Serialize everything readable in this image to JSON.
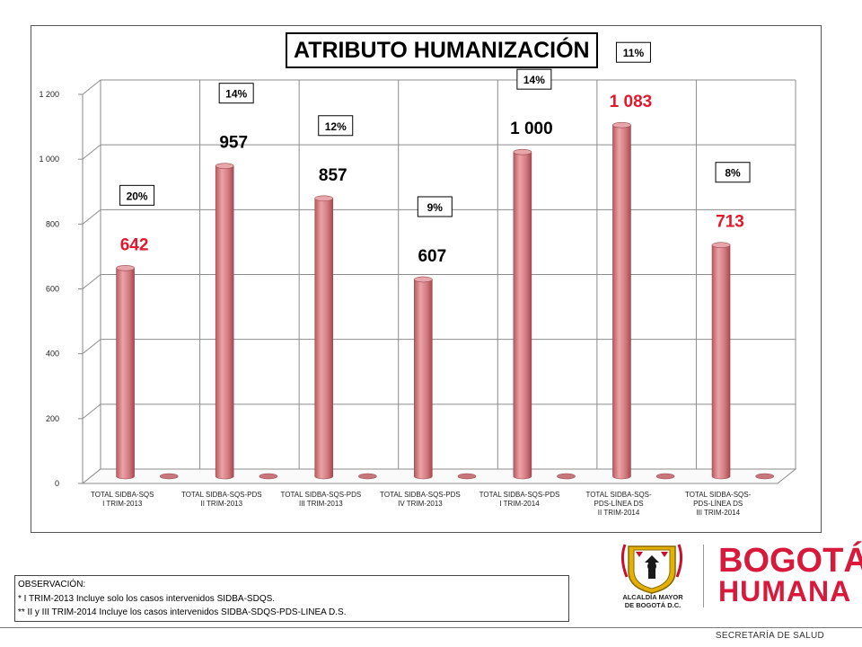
{
  "chart_data": {
    "type": "bar",
    "title": "ATRIBUTO HUMANIZACIÓN",
    "categories": [
      [
        "TOTAL SIDBA-SQS",
        "I TRIM-2013"
      ],
      [
        "TOTAL SIDBA-SQS-PDS",
        "II TRIM-2013"
      ],
      [
        "TOTAL SIDBA-SQS-PDS",
        "III TRIM-2013"
      ],
      [
        "TOTAL SIDBA-SQS-PDS",
        "IV TRIM-2013"
      ],
      [
        "TOTAL SIDBA-SQS-PDS",
        "I TRIM-2014"
      ],
      [
        "TOTAL SIDBA-SQS-",
        "PDS-LÍNEA DS",
        "II TRIM-2014"
      ],
      [
        "TOTAL SIDBA-SQS-",
        "PDS-LÍNEA DS",
        "III TRIM-2014"
      ]
    ],
    "values": [
      642,
      957,
      857,
      607,
      1000,
      1083,
      713
    ],
    "value_labels": [
      "642",
      "957",
      "857",
      "607",
      "1 000",
      "1 083",
      "713"
    ],
    "value_label_colors": [
      "#e3182d",
      "#000000",
      "#000000",
      "#000000",
      "#000000",
      "#e3182d",
      "#e3182d"
    ],
    "percent_labels": [
      "20%",
      "14%",
      "12%",
      "9%",
      "14%",
      "11%",
      "8%"
    ],
    "ylim": [
      0,
      1200
    ],
    "yticks": [
      0,
      200,
      400,
      600,
      800,
      1000,
      1200
    ],
    "ytick_labels": [
      "0",
      "200",
      "400",
      "600",
      "800",
      "1 000",
      "1 200"
    ],
    "grid": true,
    "bar_color": "#d9858a",
    "xlabel": "",
    "ylabel": ""
  },
  "observation": {
    "heading": "OBSERVACIÓN:",
    "line1": "* I TRIM-2013 Incluye solo los casos intervenidos SIDBA-SDQS.",
    "line2": "** II y III TRIM-2014 Incluye los casos intervenidos SIDBA-SDQS-PDS-LINEA D.S."
  },
  "logos": {
    "alcaldia_line1": "ALCALDÍA MAYOR",
    "alcaldia_line2": "DE BOGOTÁ D.C.",
    "brand_line1": "BOGOTÁ",
    "brand_line2": "HUMANA"
  },
  "footer": {
    "text": "SECRETARÍA DE SALUD"
  },
  "colors": {
    "brand_red": "#d7193c",
    "logo_gold": "#e2b007",
    "logo_red": "#c8102e"
  }
}
